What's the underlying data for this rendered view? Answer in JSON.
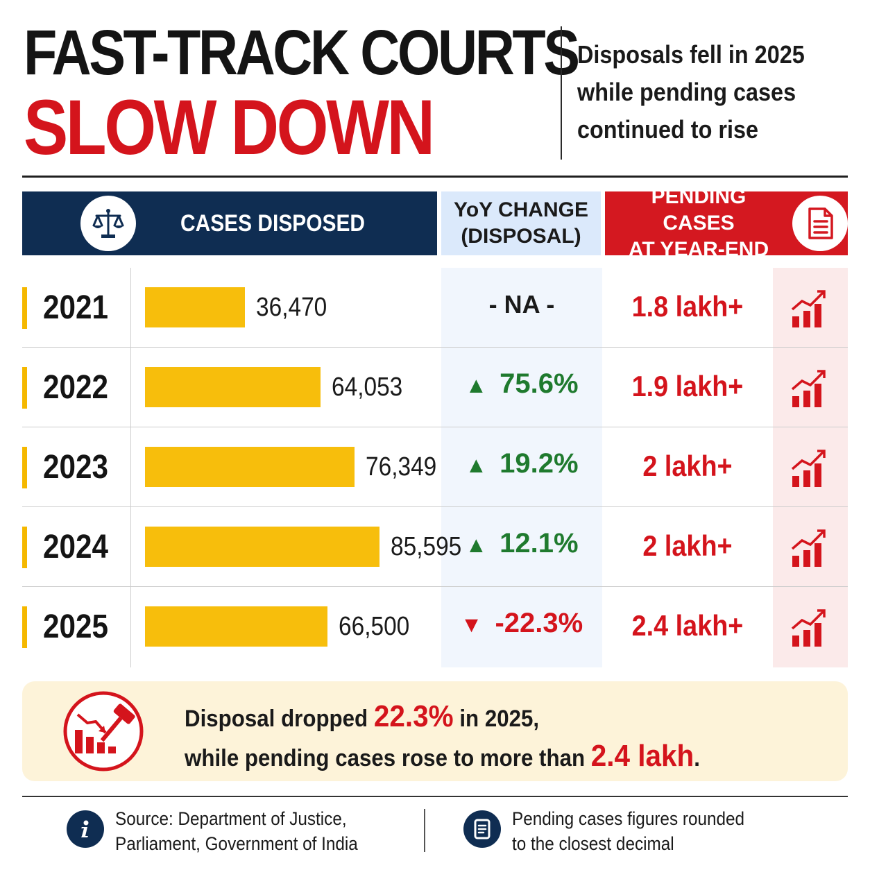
{
  "header": {
    "title_line1": "FAST-TRACK COURTS",
    "title_line2": "SLOW DOWN",
    "subtitle_lines": [
      "Disposals fell in 2025",
      "while pending cases",
      "continued to rise"
    ]
  },
  "columns": {
    "disposed": "CASES DISPOSED",
    "yoy_line1": "YoY CHANGE",
    "yoy_line2": "(DISPOSAL)",
    "pending_line1": "PENDING CASES",
    "pending_line2": "AT YEAR-END"
  },
  "icons": {
    "disposed_header": "scales-of-justice-icon",
    "pending_header": "document-icon",
    "row_trend": "rising-bar-chart-icon",
    "callout": "gavel-declining-chart-icon",
    "source": "info-icon",
    "note": "document-icon"
  },
  "colors": {
    "navy": "#0f2d52",
    "red": "#d4141c",
    "bar": "#f7be0c",
    "green": "#1f7a2e",
    "light_blue": "#dbe9fb",
    "callout_bg": "#fdf3d9"
  },
  "chart_data": {
    "type": "bar",
    "orientation": "horizontal",
    "categories": [
      "2021",
      "2022",
      "2023",
      "2024",
      "2025"
    ],
    "series": [
      {
        "values": [
          36470,
          64053,
          76349,
          85595,
          66500
        ]
      }
    ],
    "value_labels": [
      "36,470",
      "64,053",
      "76,349",
      "85,595",
      "66,500"
    ],
    "yoy_change": [
      "- NA -",
      "75.6%",
      "19.2%",
      "12.1%",
      "-22.3%"
    ],
    "yoy_direction": [
      "none",
      "up",
      "up",
      "up",
      "down"
    ],
    "pending_cases": [
      "1.8 lakh+",
      "1.9 lakh+",
      "2 lakh+",
      "2 lakh+",
      "2.4 lakh+"
    ]
  },
  "callout": {
    "line1_a": "Disposal dropped ",
    "line1_hl": "22.3%",
    "line1_b": " in 2025,",
    "line2_a": "while pending cases rose to more than ",
    "line2_hl": "2.4 lakh",
    "line2_b": "."
  },
  "footer": {
    "source_line1": "Source: Department of Justice,",
    "source_line2": "Parliament, Government of India",
    "note_line1": "Pending cases figures rounded",
    "note_line2": "to the closest decimal"
  }
}
